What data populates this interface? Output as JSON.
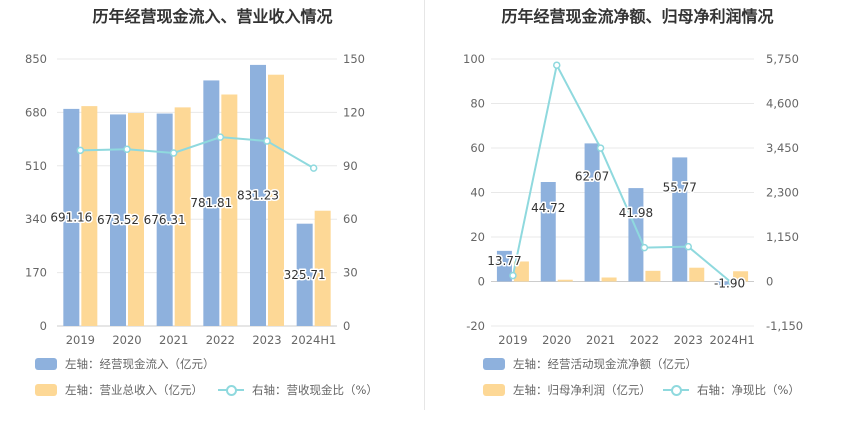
{
  "charts": [
    {
      "title": "历年经营现金流入、营业收入情况",
      "legend": [
        {
          "label": "左轴：经营现金流入（亿元）",
          "color": "#8eb1dd",
          "kind": "bar"
        },
        {
          "label": "左轴：营业总收入（亿元）",
          "color": "#fdd896",
          "kind": "bar"
        },
        {
          "label": "右轴：营收现金比（%）",
          "color": "#8fd9de",
          "kind": "line"
        }
      ]
    },
    {
      "title": "历年经营现金流净额、归母净利润情况",
      "legend": [
        {
          "label": "左轴：经营活动现金流净额（亿元）",
          "color": "#8eb1dd",
          "kind": "bar"
        },
        {
          "label": "左轴：归母净利润（亿元）",
          "color": "#fdd896",
          "kind": "bar"
        },
        {
          "label": "右轴：净现比（%）",
          "color": "#8fd9de",
          "kind": "line"
        }
      ]
    }
  ],
  "chart_data": [
    {
      "type": "bar",
      "title": "历年经营现金流入、营业收入情况",
      "categories": [
        "2019",
        "2020",
        "2021",
        "2022",
        "2023",
        "2024H1"
      ],
      "left_axis": {
        "ticks": [
          "0",
          "170",
          "340",
          "510",
          "680",
          "850"
        ],
        "range": [
          0,
          850
        ]
      },
      "right_axis": {
        "ticks": [
          "0",
          "30",
          "60",
          "90",
          "120",
          "150"
        ],
        "range": [
          0,
          150
        ]
      },
      "series": [
        {
          "name": "左轴：经营现金流入（亿元）",
          "axis": "left",
          "kind": "bar",
          "color": "#8eb1dd",
          "values": [
            691.16,
            673.52,
            676.31,
            781.81,
            831.23,
            325.71
          ],
          "labels": [
            "691.16",
            "673.52",
            "676.31",
            "781.81",
            "831.23",
            "325.71"
          ]
        },
        {
          "name": "左轴：营业总收入（亿元）",
          "axis": "left",
          "kind": "bar",
          "color": "#fdd896",
          "values": [
            700,
            678,
            696,
            737,
            800,
            367
          ]
        },
        {
          "name": "右轴：营收现金比（%）",
          "axis": "right",
          "kind": "line",
          "color": "#8fd9de",
          "values": [
            98.7,
            99.3,
            97.2,
            106.1,
            103.9,
            88.7
          ]
        }
      ],
      "grid": true
    },
    {
      "type": "bar",
      "title": "历年经营现金流净额、归母净利润情况",
      "categories": [
        "2019",
        "2020",
        "2021",
        "2022",
        "2023",
        "2024H1"
      ],
      "left_axis": {
        "ticks": [
          "-20",
          "0",
          "20",
          "40",
          "60",
          "80",
          "100"
        ],
        "range": [
          -20,
          100
        ]
      },
      "right_axis": {
        "ticks": [
          "-1,150",
          "0",
          "1,150",
          "2,300",
          "3,450",
          "4,600",
          "5,750"
        ],
        "range": [
          -1150,
          5750
        ]
      },
      "series": [
        {
          "name": "左轴：经营活动现金流净额（亿元）",
          "axis": "left",
          "kind": "bar",
          "color": "#8eb1dd",
          "values": [
            13.77,
            44.72,
            62.07,
            41.98,
            55.77,
            -1.9
          ],
          "labels": [
            "13.77",
            "44.72",
            "62.07",
            "41.98",
            "55.77",
            "-1.90"
          ]
        },
        {
          "name": "左轴：归母净利润（亿元）",
          "axis": "left",
          "kind": "bar",
          "color": "#fdd896",
          "values": [
            9,
            0.8,
            1.8,
            4.8,
            6.2,
            4.6
          ]
        },
        {
          "name": "右轴：净现比（%）",
          "axis": "right",
          "kind": "line",
          "color": "#8fd9de",
          "values": [
            153,
            5590,
            3448,
            875,
            900,
            -41
          ]
        }
      ],
      "grid": true
    }
  ]
}
